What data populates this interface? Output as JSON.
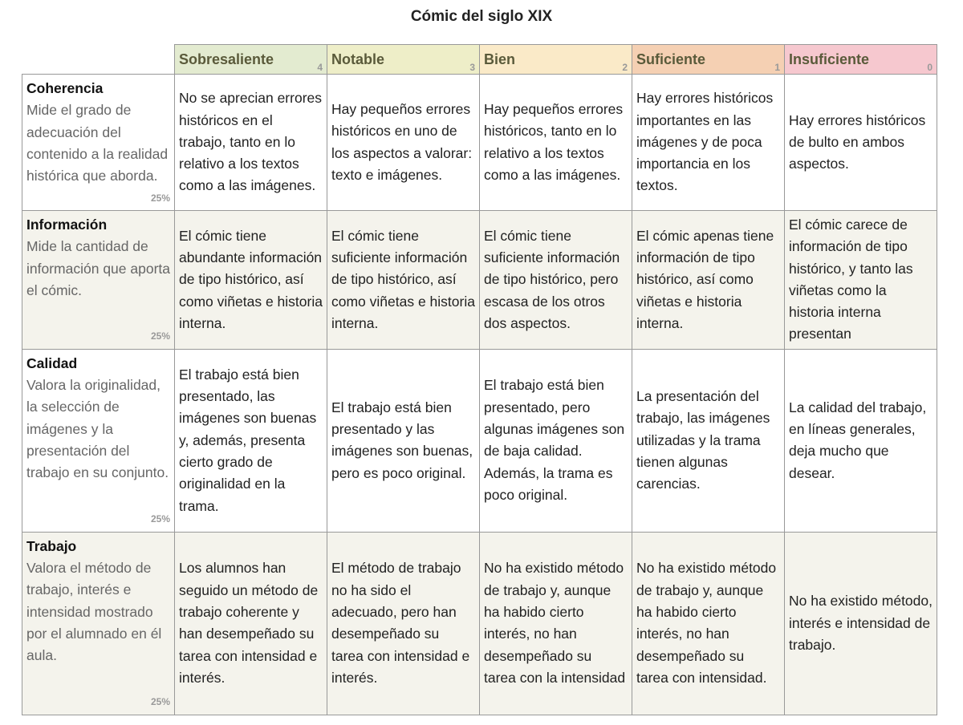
{
  "title": "Cómic del siglo XIX",
  "columns": [
    {
      "label": "Sobresaliente",
      "score": 4
    },
    {
      "label": "Notable",
      "score": 3
    },
    {
      "label": "Bien",
      "score": 2
    },
    {
      "label": "Suficiente",
      "score": 1
    },
    {
      "label": "Insuficiente",
      "score": 0
    }
  ],
  "rows": [
    {
      "name": "Coherencia",
      "description": "Mide el grado de adecuación del contenido a la realidad histórica que aborda.",
      "weight": "25%",
      "cells": [
        "No se aprecian errores históricos en el trabajo, tanto en lo relativo a los textos como a las imágenes.",
        "Hay pequeños errores históricos en uno de los aspectos a valorar: texto e imágenes.",
        "Hay pequeños errores históricos, tanto en lo relativo a los textos como a las imágenes.",
        "Hay errores históricos importantes en las imágenes y de poca importancia en los textos.",
        "Hay errores históricos de bulto en ambos aspectos."
      ]
    },
    {
      "name": "Información",
      "description": "Mide la cantidad de información que aporta el cómic.",
      "weight": "25%",
      "cells": [
        "El cómic tiene abundante información de tipo histórico, así como viñetas e historia interna.",
        "El cómic tiene suficiente información de tipo histórico, así como viñetas e historia interna.",
        "El cómic tiene suficiente información de tipo histórico, pero escasa de los otros dos aspectos.",
        "El cómic apenas tiene información de tipo histórico, así como viñetas e historia interna.",
        "El cómic carece de información de tipo histórico, y tanto las viñetas como la historia interna presentan"
      ]
    },
    {
      "name": "Calidad",
      "description": "Valora la originalidad, la selección de imágenes y la presentación del trabajo en su conjunto.",
      "weight": "25%",
      "cells": [
        "El trabajo está bien presentado, las imágenes son buenas y, además, presenta cierto grado de originalidad en la trama.",
        "El trabajo está bien presentado y las imágenes son buenas, pero es poco original.",
        "El trabajo está bien presentado, pero algunas imágenes son de baja calidad. Además, la trama es poco original.",
        "La presentación del trabajo, las imágenes utilizadas y la trama tienen algunas carencias.",
        "La calidad del trabajo, en líneas generales, deja mucho que desear."
      ]
    },
    {
      "name": "Trabajo",
      "description": "Valora el método de trabajo, interés e intensidad mostrado por el alumnado en él aula.",
      "weight": "25%",
      "cells": [
        "Los alumnos han seguido un método de trabajo coherente y han desempeñado su tarea con intensidad e interés.",
        "El método de trabajo no ha sido el adecuado, pero han desempeñado su tarea con intensidad e interés.",
        "No ha existido método de trabajo y, aunque ha habido cierto interés, no han desempeñado su tarea con la intensidad",
        "No ha existido método de trabajo y, aunque ha habido cierto interés, no han desempeñado su tarea con intensidad.",
        "No ha existido método, interés e intensidad de trabajo."
      ]
    }
  ]
}
